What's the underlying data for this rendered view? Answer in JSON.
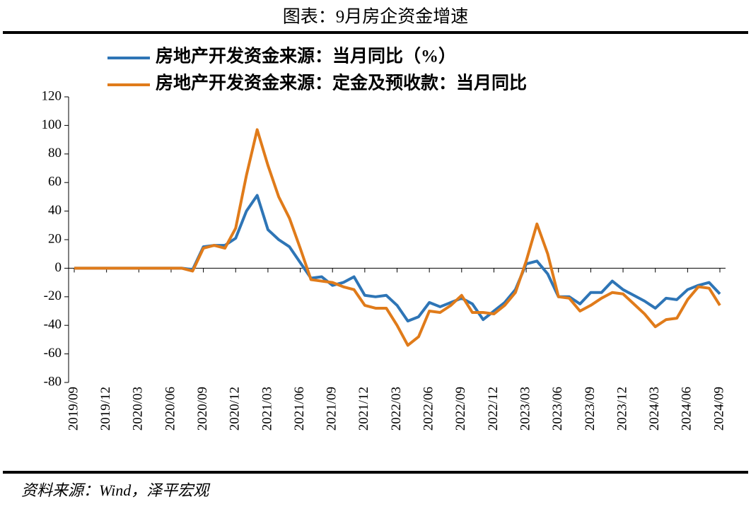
{
  "chart_data": {
    "type": "line",
    "title": "图表：9月房企资金增速",
    "source": "资料来源：Wind，泽平宏观",
    "categories": [
      "2019/09",
      null,
      null,
      "2019/12",
      null,
      null,
      "2020/03",
      null,
      null,
      "2020/06",
      null,
      null,
      "2020/09",
      null,
      null,
      "2020/12",
      null,
      null,
      "2021/03",
      null,
      null,
      "2021/06",
      null,
      null,
      "2021/09",
      null,
      null,
      "2021/12",
      null,
      null,
      "2022/03",
      null,
      null,
      "2022/06",
      null,
      null,
      "2022/09",
      null,
      null,
      "2022/12",
      null,
      null,
      "2023/03",
      null,
      null,
      "2023/06",
      null,
      null,
      "2023/09",
      null,
      null,
      "2023/12",
      null,
      null,
      "2024/03",
      null,
      null,
      "2024/06",
      null,
      null,
      "2024/09"
    ],
    "series": [
      {
        "name": "房地产开发资金来源：当月同比（%）",
        "color": "#2e75b6",
        "values": [
          0,
          0,
          0,
          0,
          0,
          0,
          0,
          0,
          0,
          0,
          0,
          -1,
          15,
          16,
          16,
          21,
          40,
          51,
          27,
          20,
          15,
          4,
          -7,
          -6,
          -12,
          -10,
          -6,
          -19,
          -20,
          -19,
          -26,
          -37,
          -34,
          -24,
          -27,
          -24,
          -21,
          -25,
          -36,
          -30,
          -24,
          -15,
          3,
          5,
          -4,
          -20,
          -20,
          -25,
          -17,
          -17,
          -9,
          -15,
          -19,
          -23,
          -28,
          -21,
          -22,
          -15,
          -12,
          -10,
          -18
        ]
      },
      {
        "name": "房地产开发资金来源：定金及预收款：当月同比",
        "color": "#e07b1a",
        "values": [
          0,
          0,
          0,
          0,
          0,
          0,
          0,
          0,
          0,
          0,
          0,
          -2,
          14,
          16,
          14,
          28,
          65,
          97,
          72,
          50,
          35,
          14,
          -8,
          -9,
          -10,
          -13,
          -15,
          -26,
          -28,
          -28,
          -40,
          -54,
          -48,
          -30,
          -31,
          -26,
          -19,
          -31,
          -31,
          -32,
          -26,
          -17,
          5,
          31,
          10,
          -20,
          -21,
          -30,
          -26,
          -21,
          -17,
          -18,
          -25,
          -32,
          -41,
          -36,
          -35,
          -22,
          -13,
          -14,
          -26
        ]
      }
    ],
    "ylim": [
      -80,
      120
    ],
    "yticks": [
      -80,
      -60,
      -40,
      -20,
      0,
      20,
      40,
      60,
      80,
      100,
      120
    ]
  }
}
